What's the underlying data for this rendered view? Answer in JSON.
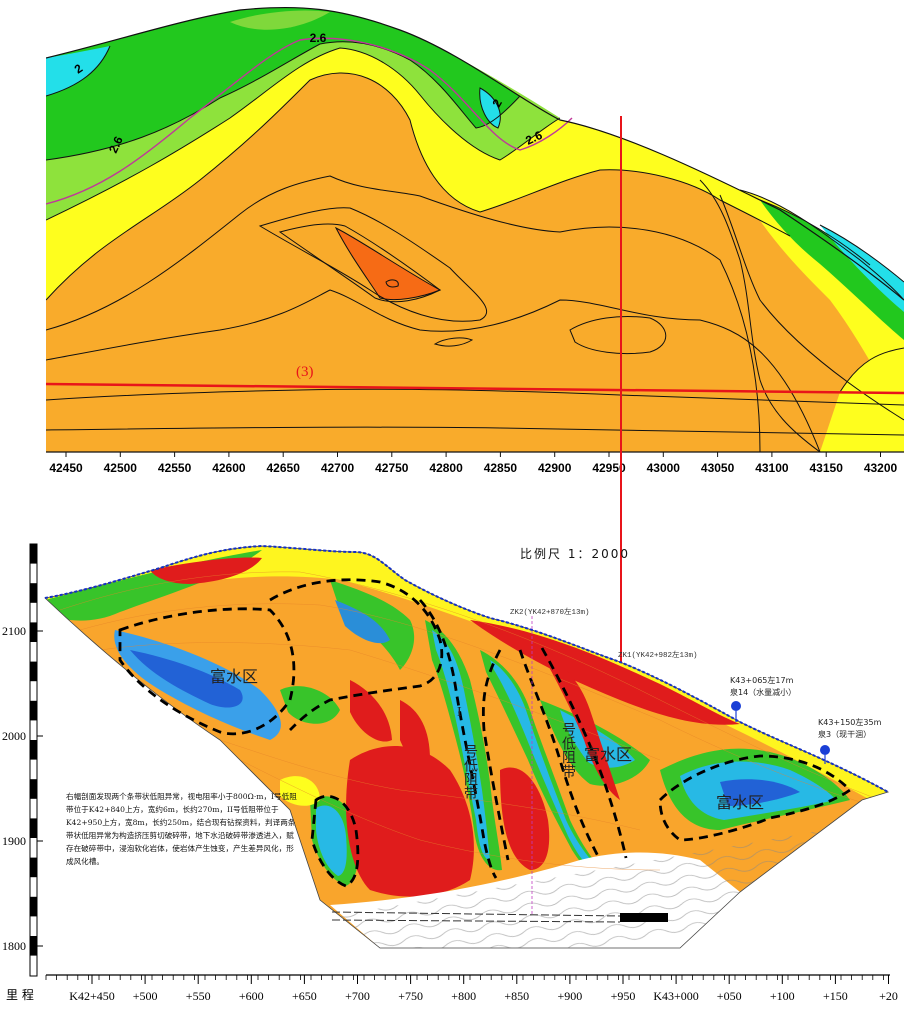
{
  "top_section": {
    "contour_labels": [
      "2.6",
      "2",
      "2.6",
      "2",
      "2.6"
    ],
    "profile_label": "(3)",
    "x_ticks": [
      "42450",
      "42500",
      "42550",
      "42600",
      "42650",
      "42700",
      "42750",
      "42800",
      "42850",
      "42900",
      "42950",
      "43000",
      "43050",
      "43100",
      "43150",
      "43200"
    ]
  },
  "bottom_section": {
    "scale_text": "比例尺 1：2000",
    "elev_ticks": [
      "2100",
      "2000",
      "1900",
      "1800"
    ],
    "station_axis_label": "里 程",
    "station_ticks": [
      "K42+450",
      "+500",
      "+550",
      "+600",
      "+650",
      "+700",
      "+750",
      "+800",
      "+850",
      "+900",
      "+950",
      "K43+000",
      "+050",
      "+100",
      "+150",
      "+20"
    ],
    "zone_labels": [
      "富水区",
      "富水区",
      "富水区"
    ],
    "zone_I_label": "I",
    "zone_II_text": "号低阻带",
    "zone_I_text": "号低阻带",
    "drill_zk2": "ZK2(YK42+870左13m)",
    "drill_zk1": "ZK1(YK42+982左13m)",
    "spring14_line1": "K43+065左17m",
    "spring14_line2": "泉14（水量减小）",
    "spring3_line1": "K43+150左35m",
    "spring3_line2": "泉3（现干涸）",
    "note_text": "右幅剖面发现两个条带状低阻异常，视电阻率小于800Ω·m，I号低阻带位于K42+840上方，宽约6m，长约270m，II号低阻带位于K42+950上方，宽8m，长约250m，结合现有钻探资料，判译两条带状低阻异常为构造挤压剪切破碎带，地下水沿破碎带渗透进入，赋存在破碎带中，浸泡软化岩体，使岩体产生蚀变，产生差异风化，形成风化槽。"
  }
}
